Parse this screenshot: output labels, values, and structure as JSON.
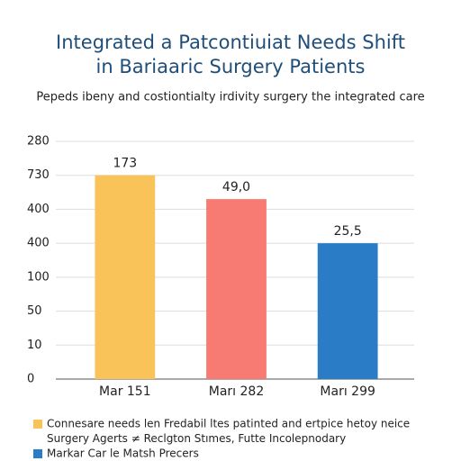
{
  "chart_data": {
    "type": "bar",
    "title": [
      "Integrated a Patcontiuiat Needs Shift",
      "in Bariaaric Surgery Patients"
    ],
    "subtitle": "Pepeds ibeny and costiontialty irdivity surgery the integrated care",
    "categories": [
      "Mar 151",
      "Marı 282",
      "Marı 299"
    ],
    "values": [
      6.0,
      5.3,
      4.0
    ],
    "bar_labels": [
      "173",
      "49,0",
      "25,5"
    ],
    "colors": [
      "#f9c35a",
      "#f77b72",
      "#2a7cc7"
    ],
    "ylim": [
      0,
      7
    ],
    "yticks": [
      {
        "value": 0,
        "label": "0"
      },
      {
        "value": 1,
        "label": "10"
      },
      {
        "value": 2,
        "label": "50"
      },
      {
        "value": 3,
        "label": "100"
      },
      {
        "value": 4,
        "label": "400"
      },
      {
        "value": 5,
        "label": "400"
      },
      {
        "value": 6,
        "label": "730"
      },
      {
        "value": 7,
        "label": "280"
      }
    ],
    "grid": true,
    "legend": [
      {
        "text": "Connesare needs len Fredabil ltes patinted and ertpice hetoy neice",
        "color": "#f9c35a"
      },
      {
        "text": "Surgery Agerts ≠ Reclgton Stımes, Futte Incolepnodary"
      },
      {
        "text": "Markar Car le Matsh Precers",
        "color": "#2a7cc7"
      }
    ]
  }
}
